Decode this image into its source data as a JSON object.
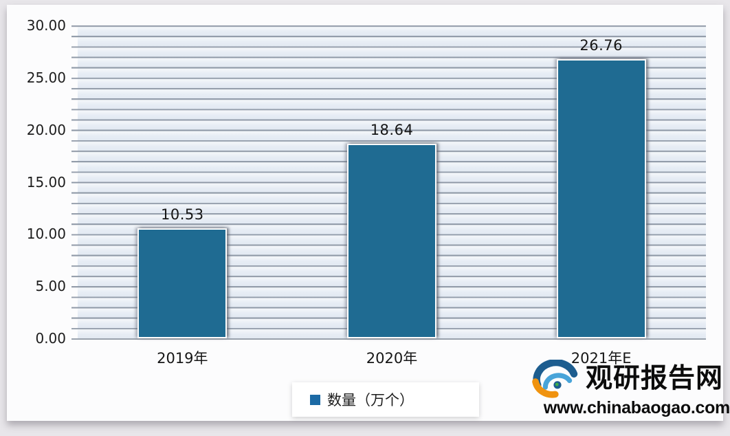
{
  "page": {
    "background": "#e8e6ea",
    "card_background": "#fcfcfd"
  },
  "chart_data": {
    "type": "bar",
    "categories": [
      "2019年",
      "2020年",
      "2021年E"
    ],
    "values": [
      10.53,
      18.64,
      26.76
    ],
    "value_labels": [
      "10.53",
      "18.64",
      "26.76"
    ],
    "series_name": "数量（万个）",
    "title": "",
    "xlabel": "",
    "ylabel": "",
    "ylim": [
      0,
      30
    ],
    "ytick_labels": [
      "30.00",
      "25.00",
      "20.00",
      "15.00",
      "10.00",
      "5.00",
      "0.00"
    ],
    "minor_gridline_step": 1,
    "grid": true,
    "legend_position": "bottom-center",
    "bar_color": "#1f6b92",
    "bar_border_color": "#ffffff",
    "gridline_color": "#8e98a6",
    "plot_band_colors": [
      "#f4f7fa",
      "#e2e9f2"
    ]
  },
  "legend": {
    "label": "数量（万个）",
    "marker_color": "#1c6aa5"
  },
  "watermark": {
    "brand": "观研报告网",
    "url": "www.chinabaogao.com",
    "icon": "swirl-eye-logo",
    "colors": {
      "dark_blue": "#1d5d8f",
      "light_blue": "#48a4d9",
      "orange": "#f0930f",
      "text": "#0c0c0c"
    }
  }
}
